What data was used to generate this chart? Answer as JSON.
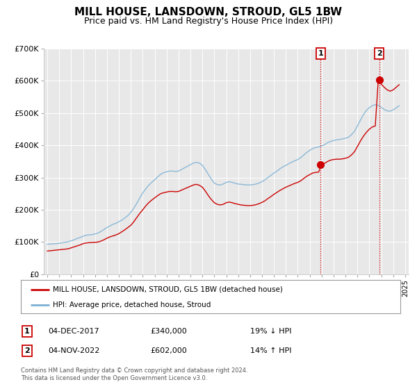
{
  "title": "MILL HOUSE, LANSDOWN, STROUD, GL5 1BW",
  "subtitle": "Price paid vs. HM Land Registry's House Price Index (HPI)",
  "title_fontsize": 11,
  "subtitle_fontsize": 9,
  "background_color": "#ffffff",
  "plot_bg_color": "#e8e8e8",
  "grid_color": "#ffffff",
  "ylim": [
    0,
    700000
  ],
  "xlim_start": 1994.7,
  "xlim_end": 2025.3,
  "yticks": [
    0,
    100000,
    200000,
    300000,
    400000,
    500000,
    600000,
    700000
  ],
  "ytick_labels": [
    "£0",
    "£100K",
    "£200K",
    "£300K",
    "£400K",
    "£500K",
    "£600K",
    "£700K"
  ],
  "xticks": [
    1995,
    1996,
    1997,
    1998,
    1999,
    2000,
    2001,
    2002,
    2003,
    2004,
    2005,
    2006,
    2007,
    2008,
    2009,
    2010,
    2011,
    2012,
    2013,
    2014,
    2015,
    2016,
    2017,
    2018,
    2019,
    2020,
    2021,
    2022,
    2023,
    2024,
    2025
  ],
  "sale1_x": 2017.92,
  "sale1_y": 340000,
  "sale1_label": "1",
  "sale1_date": "04-DEC-2017",
  "sale1_price": "£340,000",
  "sale1_hpi": "19% ↓ HPI",
  "sale2_x": 2022.84,
  "sale2_y": 602000,
  "sale2_label": "2",
  "sale2_date": "04-NOV-2022",
  "sale2_price": "£602,000",
  "sale2_hpi": "14% ↑ HPI",
  "vline_color": "#cc0000",
  "vline_style": ":",
  "red_line_color": "#cc0000",
  "blue_line_color": "#7ab0d4",
  "legend_label_red": "MILL HOUSE, LANSDOWN, STROUD, GL5 1BW (detached house)",
  "legend_label_blue": "HPI: Average price, detached house, Stroud",
  "footnote": "Contains HM Land Registry data © Crown copyright and database right 2024.\nThis data is licensed under the Open Government Licence v3.0.",
  "hpi_x": [
    1995.0,
    1995.25,
    1995.5,
    1995.75,
    1996.0,
    1996.25,
    1996.5,
    1996.75,
    1997.0,
    1997.25,
    1997.5,
    1997.75,
    1998.0,
    1998.25,
    1998.5,
    1998.75,
    1999.0,
    1999.25,
    1999.5,
    1999.75,
    2000.0,
    2000.25,
    2000.5,
    2000.75,
    2001.0,
    2001.25,
    2001.5,
    2001.75,
    2002.0,
    2002.25,
    2002.5,
    2002.75,
    2003.0,
    2003.25,
    2003.5,
    2003.75,
    2004.0,
    2004.25,
    2004.5,
    2004.75,
    2005.0,
    2005.25,
    2005.5,
    2005.75,
    2006.0,
    2006.25,
    2006.5,
    2006.75,
    2007.0,
    2007.25,
    2007.5,
    2007.75,
    2008.0,
    2008.25,
    2008.5,
    2008.75,
    2009.0,
    2009.25,
    2009.5,
    2009.75,
    2010.0,
    2010.25,
    2010.5,
    2010.75,
    2011.0,
    2011.25,
    2011.5,
    2011.75,
    2012.0,
    2012.25,
    2012.5,
    2012.75,
    2013.0,
    2013.25,
    2013.5,
    2013.75,
    2014.0,
    2014.25,
    2014.5,
    2014.75,
    2015.0,
    2015.25,
    2015.5,
    2015.75,
    2016.0,
    2016.25,
    2016.5,
    2016.75,
    2017.0,
    2017.25,
    2017.5,
    2017.75,
    2018.0,
    2018.25,
    2018.5,
    2018.75,
    2019.0,
    2019.25,
    2019.5,
    2019.75,
    2020.0,
    2020.25,
    2020.5,
    2020.75,
    2021.0,
    2021.25,
    2021.5,
    2021.75,
    2022.0,
    2022.25,
    2022.5,
    2022.75,
    2023.0,
    2023.25,
    2023.5,
    2023.75,
    2024.0,
    2024.25,
    2024.5
  ],
  "hpi_y": [
    93000,
    94000,
    94500,
    95000,
    96000,
    97500,
    99000,
    101000,
    104000,
    107000,
    111000,
    114000,
    118000,
    121000,
    122000,
    123000,
    125000,
    128000,
    133000,
    139000,
    145000,
    150000,
    155000,
    158000,
    163000,
    168000,
    175000,
    182000,
    192000,
    205000,
    220000,
    237000,
    252000,
    265000,
    276000,
    285000,
    293000,
    302000,
    310000,
    315000,
    318000,
    320000,
    320000,
    319000,
    320000,
    325000,
    330000,
    335000,
    340000,
    345000,
    347000,
    345000,
    338000,
    325000,
    310000,
    295000,
    283000,
    278000,
    277000,
    280000,
    285000,
    287000,
    285000,
    282000,
    280000,
    279000,
    278000,
    277000,
    277000,
    278000,
    280000,
    283000,
    287000,
    293000,
    300000,
    307000,
    314000,
    320000,
    327000,
    333000,
    338000,
    343000,
    348000,
    352000,
    356000,
    362000,
    370000,
    378000,
    384000,
    390000,
    393000,
    395000,
    398000,
    402000,
    408000,
    412000,
    415000,
    417000,
    418000,
    420000,
    422000,
    425000,
    433000,
    443000,
    460000,
    478000,
    495000,
    508000,
    517000,
    523000,
    526000,
    524000,
    518000,
    511000,
    507000,
    506000,
    510000,
    516000,
    523000
  ],
  "red_x": [
    1995.0,
    1995.25,
    1995.5,
    1995.75,
    1996.0,
    1996.25,
    1996.5,
    1996.75,
    1997.0,
    1997.25,
    1997.5,
    1997.75,
    1998.0,
    1998.25,
    1998.5,
    1998.75,
    1999.0,
    1999.25,
    1999.5,
    1999.75,
    2000.0,
    2000.25,
    2000.5,
    2000.75,
    2001.0,
    2001.25,
    2001.5,
    2001.75,
    2002.0,
    2002.25,
    2002.5,
    2002.75,
    2003.0,
    2003.25,
    2003.5,
    2003.75,
    2004.0,
    2004.25,
    2004.5,
    2004.75,
    2005.0,
    2005.25,
    2005.5,
    2005.75,
    2006.0,
    2006.25,
    2006.5,
    2006.75,
    2007.0,
    2007.25,
    2007.5,
    2007.75,
    2008.0,
    2008.25,
    2008.5,
    2008.75,
    2009.0,
    2009.25,
    2009.5,
    2009.75,
    2010.0,
    2010.25,
    2010.5,
    2010.75,
    2011.0,
    2011.25,
    2011.5,
    2011.75,
    2012.0,
    2012.25,
    2012.5,
    2012.75,
    2013.0,
    2013.25,
    2013.5,
    2013.75,
    2014.0,
    2014.25,
    2014.5,
    2014.75,
    2015.0,
    2015.25,
    2015.5,
    2015.75,
    2016.0,
    2016.25,
    2016.5,
    2016.75,
    2017.0,
    2017.25,
    2017.5,
    2017.75,
    2018.0,
    2018.25,
    2018.5,
    2018.75,
    2019.0,
    2019.25,
    2019.5,
    2019.75,
    2020.0,
    2020.25,
    2020.5,
    2020.75,
    2021.0,
    2021.25,
    2021.5,
    2021.75,
    2022.0,
    2022.25,
    2022.5,
    2022.75,
    2023.0,
    2023.25,
    2023.5,
    2023.75,
    2024.0,
    2024.25,
    2024.5
  ],
  "red_y": [
    72000,
    73000,
    74000,
    75000,
    76000,
    77000,
    78000,
    79000,
    82000,
    85000,
    88000,
    91000,
    95000,
    97000,
    98000,
    98500,
    99000,
    100000,
    103000,
    107000,
    112000,
    116000,
    119000,
    122000,
    126000,
    132000,
    138000,
    145000,
    152000,
    163000,
    176000,
    189000,
    200000,
    212000,
    222000,
    230000,
    237000,
    244000,
    250000,
    253000,
    255000,
    257000,
    257000,
    256000,
    257000,
    261000,
    265000,
    269000,
    273000,
    277000,
    279000,
    276000,
    270000,
    258000,
    244000,
    232000,
    222000,
    217000,
    215000,
    217000,
    222000,
    224000,
    222000,
    219000,
    217000,
    215000,
    214000,
    213000,
    213000,
    214000,
    216000,
    219000,
    223000,
    228000,
    235000,
    241000,
    248000,
    254000,
    260000,
    265000,
    270000,
    274000,
    278000,
    282000,
    285000,
    290000,
    297000,
    304000,
    309000,
    314000,
    316000,
    317000,
    340000,
    344000,
    350000,
    354000,
    356000,
    357000,
    357000,
    358000,
    360000,
    363000,
    370000,
    380000,
    396000,
    413000,
    428000,
    440000,
    450000,
    457000,
    460000,
    602000,
    590000,
    580000,
    572000,
    568000,
    572000,
    580000,
    588000
  ]
}
